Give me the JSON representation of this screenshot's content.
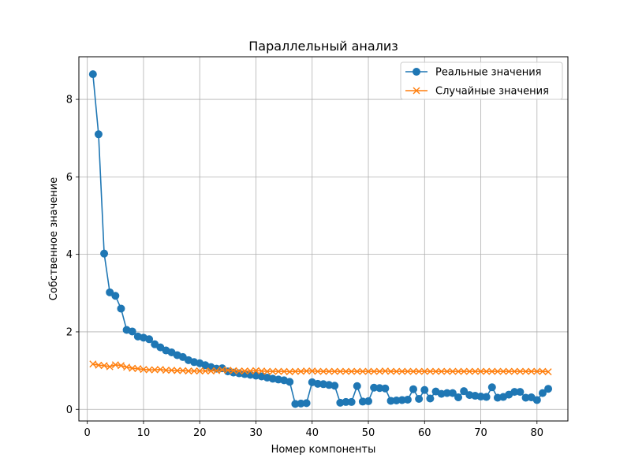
{
  "chart_data": {
    "type": "line",
    "title": "Параллельный анализ",
    "xlabel": "Номер компоненты",
    "ylabel": "Собственное значение",
    "xlim": [
      -1.5,
      85.5
    ],
    "ylim": [
      -0.3,
      9.1
    ],
    "xticks": [
      0,
      10,
      20,
      30,
      40,
      50,
      60,
      70,
      80
    ],
    "yticks": [
      0,
      2,
      4,
      6,
      8
    ],
    "grid": true,
    "legend_position": "top-right",
    "x": [
      1,
      2,
      3,
      4,
      5,
      6,
      7,
      8,
      9,
      10,
      11,
      12,
      13,
      14,
      15,
      16,
      17,
      18,
      19,
      20,
      21,
      22,
      23,
      24,
      25,
      26,
      27,
      28,
      29,
      30,
      31,
      32,
      33,
      34,
      35,
      36,
      37,
      38,
      39,
      40,
      41,
      42,
      43,
      44,
      45,
      46,
      47,
      48,
      49,
      50,
      51,
      52,
      53,
      54,
      55,
      56,
      57,
      58,
      59,
      60,
      61,
      62,
      63,
      64,
      65,
      66,
      67,
      68,
      69,
      70,
      71,
      72,
      73,
      74,
      75,
      76,
      77,
      78,
      79,
      80,
      81,
      82
    ],
    "series": [
      {
        "name": "Реальные значения",
        "marker": "circle",
        "color": "#1f77b4",
        "values": [
          8.65,
          7.1,
          4.02,
          3.02,
          2.93,
          2.6,
          2.05,
          2.01,
          1.88,
          1.85,
          1.81,
          1.68,
          1.6,
          1.52,
          1.47,
          1.4,
          1.35,
          1.27,
          1.22,
          1.19,
          1.14,
          1.09,
          1.05,
          1.06,
          0.98,
          0.95,
          0.93,
          0.91,
          0.89,
          0.87,
          0.85,
          0.82,
          0.79,
          0.77,
          0.75,
          0.71,
          0.14,
          0.15,
          0.16,
          0.7,
          0.66,
          0.65,
          0.63,
          0.61,
          0.17,
          0.19,
          0.19,
          0.6,
          0.2,
          0.21,
          0.56,
          0.55,
          0.54,
          0.22,
          0.23,
          0.24,
          0.25,
          0.52,
          0.27,
          0.5,
          0.28,
          0.46,
          0.4,
          0.42,
          0.42,
          0.31,
          0.47,
          0.37,
          0.35,
          0.33,
          0.32,
          0.57,
          0.3,
          0.32,
          0.38,
          0.45,
          0.45,
          0.3,
          0.31,
          0.24,
          0.42,
          0.53
        ]
      },
      {
        "name": "Случайные значения",
        "marker": "x",
        "color": "#ff7f0e",
        "values": [
          1.17,
          1.14,
          1.13,
          1.1,
          1.15,
          1.13,
          1.09,
          1.06,
          1.05,
          1.03,
          1.02,
          1.02,
          1.03,
          1.01,
          1.01,
          1.0,
          1.0,
          0.99,
          0.99,
          0.99,
          0.99,
          0.99,
          1.0,
          1.02,
          1.01,
          1.0,
          0.99,
          0.99,
          0.99,
          1.0,
          0.99,
          0.98,
          0.98,
          0.98,
          0.98,
          0.97,
          0.98,
          0.98,
          0.99,
          0.99,
          0.98,
          0.98,
          0.98,
          0.98,
          0.98,
          0.98,
          0.98,
          0.98,
          0.98,
          0.98,
          0.98,
          0.98,
          0.99,
          0.98,
          0.98,
          0.98,
          0.98,
          0.98,
          0.98,
          0.98,
          0.98,
          0.98,
          0.98,
          0.98,
          0.98,
          0.98,
          0.98,
          0.98,
          0.98,
          0.98,
          0.98,
          0.98,
          0.98,
          0.98,
          0.98,
          0.98,
          0.98,
          0.98,
          0.98,
          0.98,
          0.98,
          0.97
        ]
      }
    ]
  }
}
